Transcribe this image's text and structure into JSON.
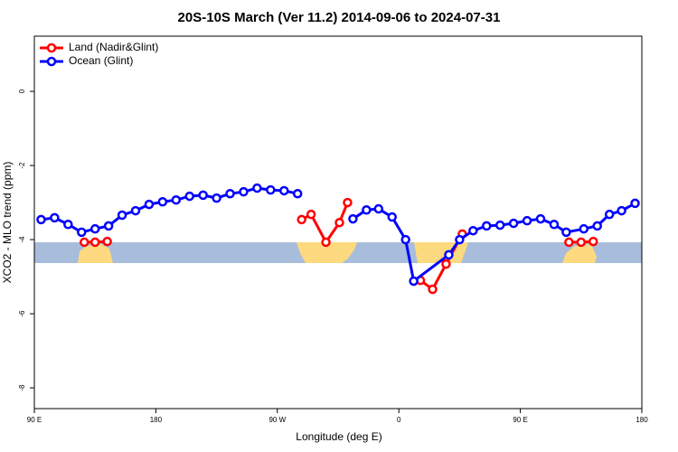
{
  "chart_data": {
    "type": "line",
    "title": "20S-10S March (Ver 11.2)   2014-09-06 to 2024-07-31",
    "x_label": "Longitude (deg E)",
    "y_label": "XCO2 - MLO trend (ppm)",
    "xlim": [
      90,
      540
    ],
    "ylim": [
      -8.56,
      1.49
    ],
    "xticks": [
      {
        "value": 90,
        "label": "90 E"
      },
      180,
      {
        "value": 270,
        "label": "90 W"
      },
      {
        "value": 360,
        "label": "0"
      },
      {
        "value": 450,
        "label": "90 E"
      },
      {
        "value": 540,
        "label": "180"
      }
    ],
    "yticks": [
      0,
      -2,
      -4,
      -6,
      -8
    ],
    "legend": "top-left",
    "series": [
      {
        "name": "Land (Nadir&Glint)",
        "color": "#ff0000",
        "x": [
          127,
          135,
          144,
          null,
          288,
          295,
          306,
          316,
          322,
          null,
          376,
          385,
          395,
          407,
          null,
          486,
          495,
          504
        ],
        "values": [
          -4.07,
          -4.07,
          -4.05,
          null,
          -3.46,
          -3.32,
          -4.07,
          -3.54,
          -3.0,
          null,
          -5.1,
          -5.34,
          -4.66,
          -3.85,
          null,
          -4.07,
          -4.07,
          -4.05
        ]
      },
      {
        "name": "Ocean (Glint)",
        "color": "#0000ff",
        "x": [
          95,
          105,
          115,
          125,
          135,
          145,
          155,
          165,
          175,
          185,
          195,
          205,
          215,
          225,
          235,
          245,
          255,
          265,
          275,
          285,
          null,
          326,
          336,
          345,
          355,
          365,
          371,
          397,
          405,
          415,
          425,
          435,
          445,
          455,
          465,
          475,
          484,
          497,
          507,
          516,
          525,
          535
        ],
        "values": [
          -3.46,
          -3.41,
          -3.59,
          -3.8,
          -3.71,
          -3.63,
          -3.34,
          -3.22,
          -3.05,
          -2.98,
          -2.93,
          -2.83,
          -2.8,
          -2.88,
          -2.76,
          -2.71,
          -2.61,
          -2.66,
          -2.68,
          -2.76,
          null,
          -3.44,
          -3.2,
          -3.17,
          -3.39,
          -4.0,
          -5.12,
          -4.41,
          -4.0,
          -3.76,
          -3.63,
          -3.61,
          -3.56,
          -3.49,
          -3.44,
          -3.59,
          -3.8,
          -3.71,
          -3.63,
          -3.32,
          -3.22,
          -3.02
        ]
      }
    ]
  }
}
